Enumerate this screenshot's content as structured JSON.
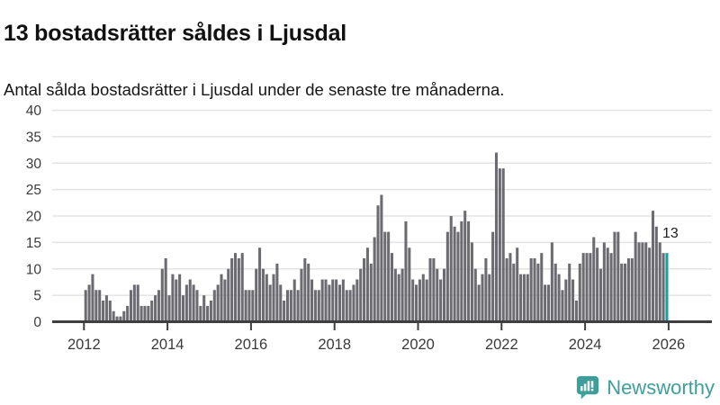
{
  "header": {
    "title": "13 bostadsrätter såldes i Ljusdal",
    "subtitle": "Antal sålda bostadsrätter i Ljusdal under de senaste tre månaderna."
  },
  "chart_data": {
    "type": "bar",
    "title": "13 bostadsrätter såldes i Ljusdal",
    "xlabel": "",
    "ylabel": "",
    "ylim": [
      0,
      40
    ],
    "grid": true,
    "y_ticks": [
      0,
      5,
      10,
      15,
      20,
      25,
      30,
      35,
      40
    ],
    "x_tick_years": [
      2012,
      2014,
      2016,
      2018,
      2020,
      2022,
      2024,
      2026
    ],
    "x_range": [
      "2012-01",
      "2025-12"
    ],
    "values": [
      6,
      7,
      9,
      6,
      6,
      4,
      5,
      4,
      2,
      1,
      1,
      2,
      3,
      6,
      7,
      7,
      3,
      3,
      3,
      4,
      5,
      6,
      10,
      12,
      5,
      9,
      8,
      9,
      5,
      7,
      8,
      7,
      6,
      3,
      5,
      3,
      4,
      6,
      7,
      9,
      8,
      10,
      12,
      13,
      12,
      13,
      6,
      6,
      6,
      10,
      14,
      10,
      9,
      7,
      9,
      11,
      7,
      4,
      6,
      6,
      8,
      6,
      10,
      12,
      11,
      8,
      6,
      6,
      8,
      8,
      7,
      8,
      8,
      7,
      8,
      6,
      6,
      7,
      8,
      10,
      12,
      14,
      11,
      16,
      22,
      24,
      17,
      17,
      13,
      10,
      9,
      10,
      19,
      14,
      8,
      7,
      8,
      9,
      8,
      12,
      12,
      10,
      8,
      10,
      17,
      20,
      18,
      17,
      19,
      21,
      19,
      15,
      10,
      7,
      9,
      12,
      9,
      17,
      32,
      29,
      29,
      12,
      13,
      11,
      14,
      9,
      9,
      9,
      12,
      12,
      11,
      13,
      7,
      7,
      15,
      11,
      9,
      6,
      8,
      11,
      8,
      4,
      11,
      13,
      13,
      13,
      16,
      14,
      10,
      15,
      14,
      13,
      17,
      17,
      11,
      11,
      12,
      12,
      17,
      15,
      15,
      15,
      14,
      21,
      18,
      15,
      13,
      13
    ],
    "highlight_last": true,
    "annotation": {
      "text": "13"
    },
    "colors": {
      "bar": "#6b6b71",
      "highlight": "#14a0a5",
      "grid": "#e3e3e3",
      "axis": "#3f3f3f",
      "tick_label": "#3a3a3a",
      "annotation": "#1d1d1d"
    }
  },
  "branding": {
    "logo_text": "Newsworthy",
    "color": "#3e9e99"
  }
}
